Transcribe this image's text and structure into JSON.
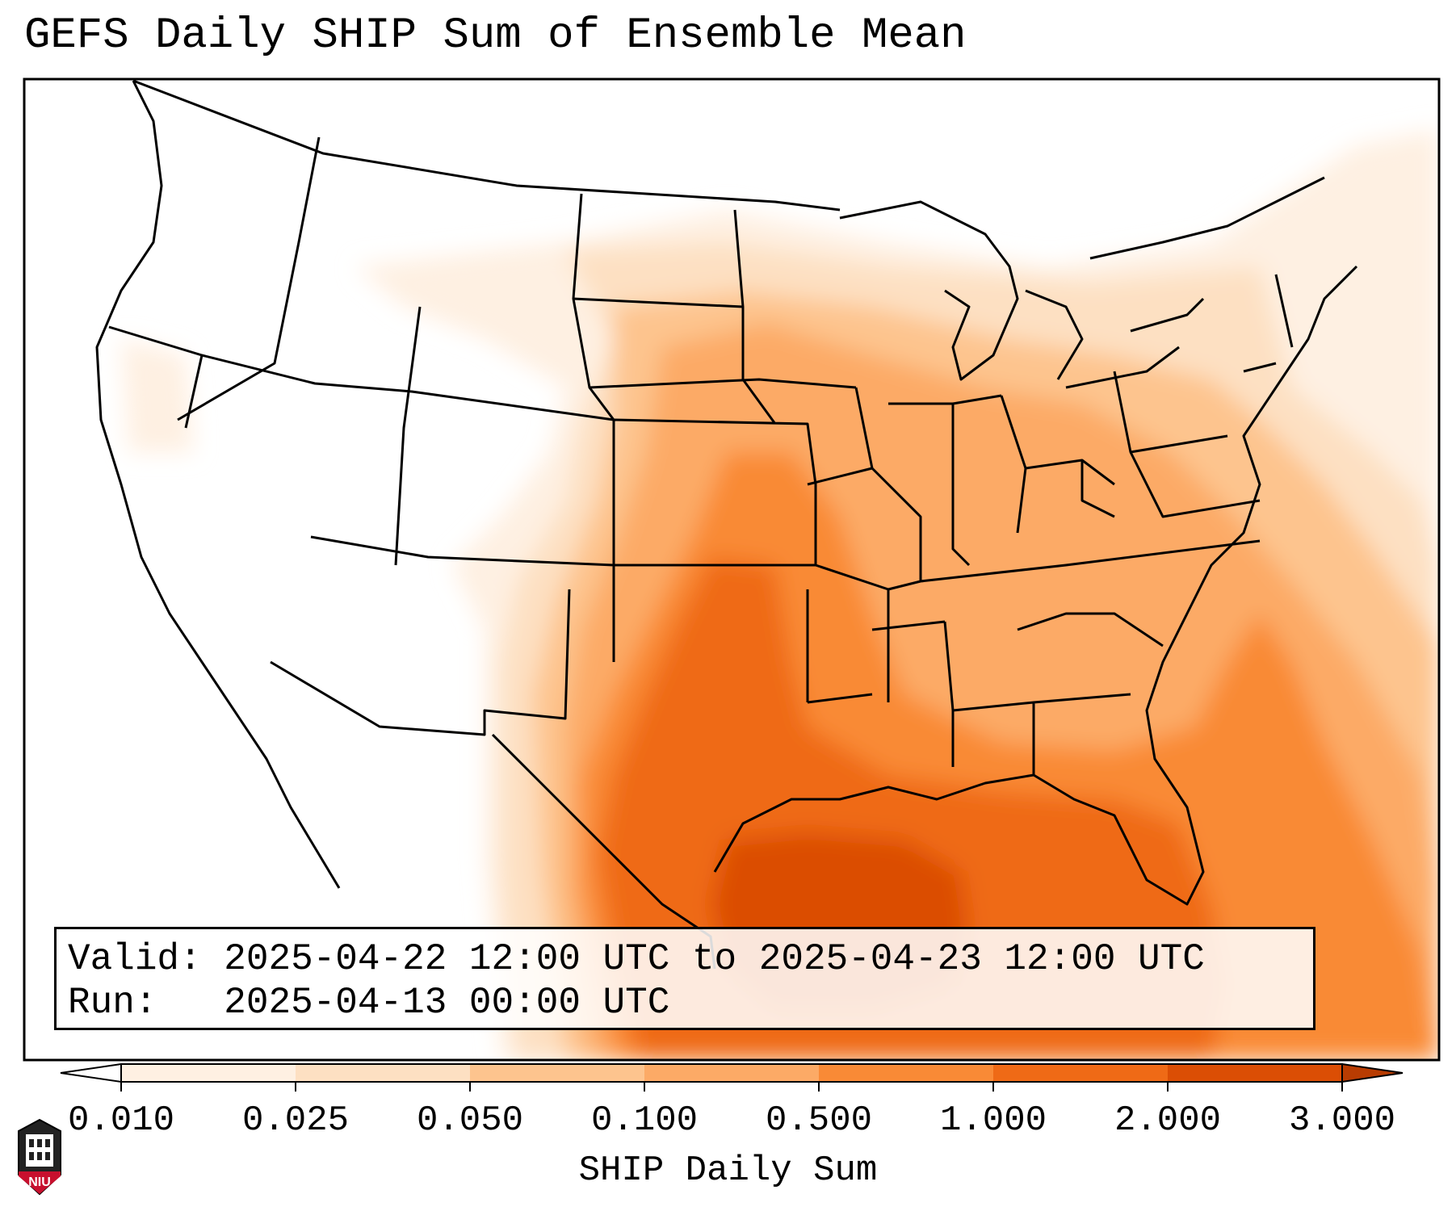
{
  "title": "GEFS Daily SHIP Sum of Ensemble Mean",
  "info": {
    "valid_label": "Valid:",
    "valid_value": "2025-04-22 12:00 UTC to 2025-04-23 12:00 UTC",
    "run_label": "Run:",
    "run_value": "2025-04-13 00:00 UTC"
  },
  "colorbar": {
    "title": "SHIP Daily Sum",
    "ticks": [
      "0.010",
      "0.025",
      "0.050",
      "0.100",
      "0.500",
      "1.000",
      "2.000",
      "3.000"
    ],
    "colors": [
      "#fef0e2",
      "#fde0c2",
      "#fdc48e",
      "#fcaa66",
      "#f98a36",
      "#ef6a16",
      "#db4e05"
    ],
    "extend_min_color": "#ffffff",
    "extend_max_color": "#b83c02"
  },
  "logo": {
    "text": "NIU",
    "accent": "#c8102e"
  },
  "map": {
    "projection": "Lambert conformal, contiguous United States",
    "max_region": "Gulf of Mexico",
    "layers": [
      "state-boundaries",
      "coastlines",
      "filled-ship-field"
    ]
  }
}
